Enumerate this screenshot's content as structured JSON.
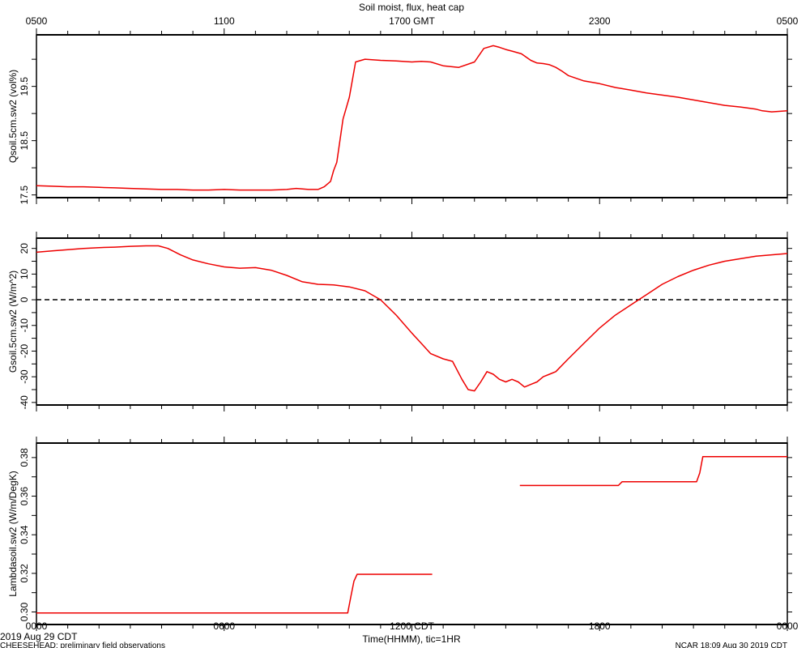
{
  "footer": {
    "date_label": "2019 Aug 29 CDT",
    "project_note": "CHEESEHEAD: preliminary field observations",
    "creation_note": "NCAR 18:09 Aug 30 2019 CDT"
  },
  "chart_data": {
    "type": "line",
    "title": "Soil moist, flux, heat cap",
    "x_units": "hours CDT",
    "x_range": [
      0,
      24
    ],
    "top_axis": {
      "title": "",
      "ticks": [
        {
          "x": 0,
          "label": "0500"
        },
        {
          "x": 6,
          "label": "1100"
        },
        {
          "x": 12,
          "label": "1700 GMT"
        },
        {
          "x": 18,
          "label": "2300"
        },
        {
          "x": 24,
          "label": "0500"
        }
      ]
    },
    "bottom_axis": {
      "title": "Time(HHMM), tic=1HR",
      "ticks": [
        {
          "x": 0,
          "label": "0000"
        },
        {
          "x": 6,
          "label": "0600"
        },
        {
          "x": 12,
          "label": "1200 CDT"
        },
        {
          "x": 18,
          "label": "1800"
        },
        {
          "x": 24,
          "label": "0000"
        }
      ]
    },
    "line_color": "#ee0000",
    "panels": [
      {
        "ylabel": "Qsoil.5cm.sw2 (vol%)",
        "ylim": [
          17.45,
          20.45
        ],
        "yticks": [
          {
            "v": 17.5,
            "label": "17.5"
          },
          {
            "v": 18.5,
            "label": "18.5"
          },
          {
            "v": 19.5,
            "label": "19.5"
          }
        ],
        "series": [
          {
            "x": [
              0,
              0.5,
              1,
              1.5,
              2,
              2.5,
              3,
              3.5,
              4,
              4.5,
              5,
              5.5,
              6,
              6.5,
              7,
              7.5,
              8,
              8.3,
              8.7,
              9,
              9.2,
              9.4,
              9.5,
              9.6,
              9.8,
              10,
              10.2,
              10.5,
              11,
              11.5,
              12,
              12.3,
              12.6,
              13,
              13.5,
              14,
              14.3,
              14.6,
              14.8,
              15,
              15.2,
              15.5,
              15.8,
              16,
              16.2,
              16.4,
              16.6,
              16.8,
              17,
              17.5,
              18,
              18.5,
              19,
              19.5,
              20,
              20.5,
              21,
              21.5,
              22,
              22.5,
              23,
              23.2,
              23.5,
              24
            ],
            "y": [
              17.67,
              17.66,
              17.65,
              17.65,
              17.64,
              17.63,
              17.62,
              17.61,
              17.6,
              17.6,
              17.59,
              17.59,
              17.6,
              17.59,
              17.59,
              17.59,
              17.6,
              17.62,
              17.6,
              17.6,
              17.65,
              17.75,
              17.95,
              18.1,
              18.9,
              19.3,
              19.95,
              20.0,
              19.98,
              19.97,
              19.95,
              19.96,
              19.95,
              19.88,
              19.85,
              19.95,
              20.2,
              20.25,
              20.22,
              20.18,
              20.15,
              20.1,
              19.98,
              19.93,
              19.92,
              19.9,
              19.85,
              19.78,
              19.7,
              19.6,
              19.55,
              19.48,
              19.43,
              19.38,
              19.34,
              19.3,
              19.25,
              19.2,
              19.15,
              19.12,
              19.08,
              19.05,
              19.03,
              19.05
            ]
          }
        ]
      },
      {
        "ylabel": "Gsoil.5cm.sw2 (W/m^2)",
        "ylim": [
          -41,
          24
        ],
        "yticks": [
          {
            "v": 20,
            "label": "20"
          },
          {
            "v": 10,
            "label": "10"
          },
          {
            "v": 0,
            "label": "0"
          },
          {
            "v": -10,
            "label": "-10"
          },
          {
            "v": -20,
            "label": "-20"
          },
          {
            "v": -30,
            "label": "-30"
          },
          {
            "v": -40,
            "label": "-40"
          }
        ],
        "reference_line": 0,
        "series": [
          {
            "x": [
              0,
              0.5,
              1,
              1.5,
              2,
              2.5,
              3,
              3.5,
              3.9,
              4.2,
              4.6,
              5,
              5.5,
              6,
              6.5,
              7,
              7.5,
              8,
              8.5,
              9,
              9.5,
              10,
              10.5,
              11,
              11.5,
              12,
              12.3,
              12.6,
              13,
              13.3,
              13.6,
              13.8,
              14,
              14.2,
              14.4,
              14.6,
              14.8,
              15,
              15.2,
              15.4,
              15.6,
              15.8,
              16,
              16.2,
              16.4,
              16.6,
              17,
              17.5,
              18,
              18.5,
              19,
              19.5,
              20,
              20.5,
              21,
              21.5,
              22,
              22.5,
              23,
              23.5,
              24
            ],
            "y": [
              18.5,
              19,
              19.5,
              20,
              20.3,
              20.5,
              20.8,
              21,
              21,
              20,
              17.5,
              15.5,
              14,
              12.8,
              12.3,
              12.5,
              11.5,
              9.5,
              7,
              6,
              5.8,
              5,
              3.5,
              0,
              -6,
              -13,
              -17,
              -21,
              -23,
              -24,
              -31,
              -35,
              -35.5,
              -32,
              -28,
              -29,
              -31,
              -32,
              -31,
              -32,
              -34,
              -33,
              -32,
              -30,
              -29,
              -28,
              -23,
              -17,
              -11,
              -6,
              -2,
              2,
              6,
              9,
              11.5,
              13.5,
              15,
              16,
              17,
              17.5,
              18
            ]
          }
        ]
      },
      {
        "ylabel": "Lambdasoil.sw2 (W/m/DegK)",
        "ylim": [
          0.2935,
          0.3875
        ],
        "yticks": [
          {
            "v": 0.3,
            "label": "0.30"
          },
          {
            "v": 0.32,
            "label": "0.32"
          },
          {
            "v": 0.34,
            "label": "0.34"
          },
          {
            "v": 0.36,
            "label": "0.36"
          },
          {
            "v": 0.38,
            "label": "0.38"
          }
        ],
        "series": [
          {
            "x": [
              0,
              9.95,
              10.05,
              10.15,
              10.25,
              12.65
            ],
            "y": [
              0.2995,
              0.2995,
              0.308,
              0.316,
              0.3195,
              0.3195
            ]
          },
          {
            "x": [
              15.45,
              18.6,
              18.72,
              21.1,
              21.2,
              21.3,
              24
            ],
            "y": [
              0.3655,
              0.3655,
              0.3675,
              0.3675,
              0.372,
              0.3805,
              0.3805
            ]
          }
        ]
      }
    ]
  }
}
